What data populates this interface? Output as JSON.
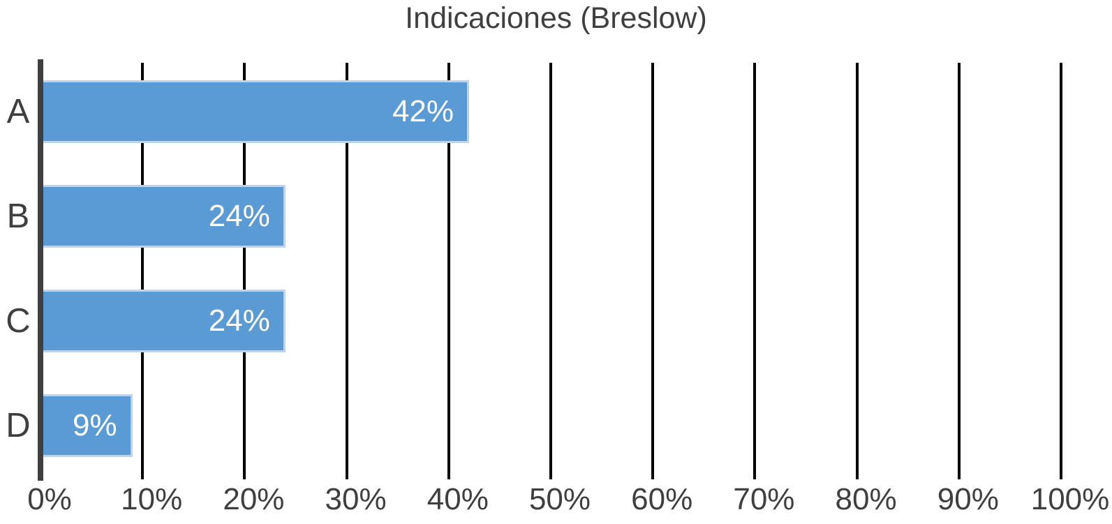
{
  "chart_data": {
    "type": "bar",
    "orientation": "horizontal",
    "title": "Indicaciones (Breslow)",
    "categories": [
      "A",
      "B",
      "C",
      "D"
    ],
    "values": [
      42,
      24,
      24,
      9
    ],
    "value_labels": [
      "42%",
      "24%",
      "24%",
      "9%"
    ],
    "x_ticks": [
      "0%",
      "10%",
      "20%",
      "30%",
      "40%",
      "50%",
      "60%",
      "70%",
      "80%",
      "90%",
      "100%"
    ],
    "xlim": [
      0,
      100
    ],
    "grid": true,
    "legend": false,
    "colors": {
      "bar_fill": "#5B9BD5",
      "bar_border": "#BCD4EC",
      "grid_line": "#000000",
      "axis_line": "#404040",
      "text": "#3F3F3F",
      "value_label": "#FFFFFF",
      "background": "#FFFFFF"
    }
  }
}
